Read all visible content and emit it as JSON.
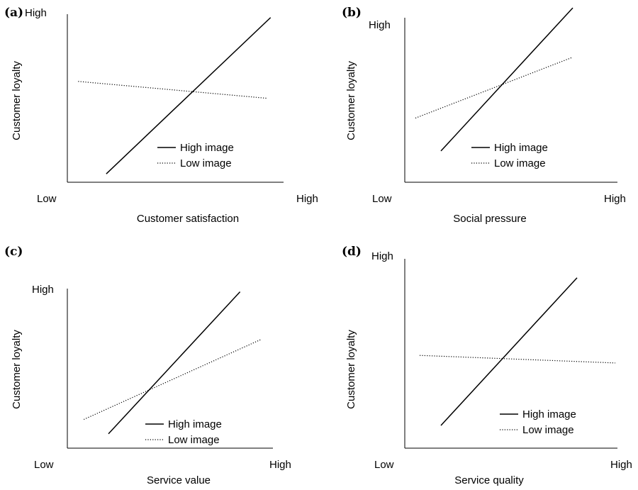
{
  "chart_data": [
    {
      "panel": "(a)",
      "type": "line",
      "xlabel": "Customer satisfaction",
      "ylabel": "Customer loyalty",
      "x_ticks": [
        "Low",
        "High"
      ],
      "y_ticks": [
        "High"
      ],
      "series": [
        {
          "name": "High image",
          "style": "solid",
          "points": [
            [
              0.18,
              0.05
            ],
            [
              0.94,
              0.98
            ]
          ]
        },
        {
          "name": "Low image",
          "style": "dotted",
          "points": [
            [
              0.05,
              0.6
            ],
            [
              0.92,
              0.5
            ]
          ]
        }
      ]
    },
    {
      "panel": "(b)",
      "type": "line",
      "xlabel": "Social pressure",
      "ylabel": "Customer loyalty",
      "x_ticks": [
        "Low",
        "High"
      ],
      "y_ticks": [
        "High"
      ],
      "series": [
        {
          "name": "High image",
          "style": "solid",
          "points": [
            [
              0.17,
              0.19
            ],
            [
              0.79,
              1.06
            ]
          ]
        },
        {
          "name": "Low image",
          "style": "dotted",
          "points": [
            [
              0.05,
              0.39
            ],
            [
              0.79,
              0.76
            ]
          ]
        }
      ]
    },
    {
      "panel": "(c)",
      "type": "line",
      "xlabel": "Service value",
      "ylabel": "Customer loyalty",
      "x_ticks": [
        "Low",
        "High"
      ],
      "y_ticks": [
        "High"
      ],
      "series": [
        {
          "name": "High image",
          "style": "solid",
          "points": [
            [
              0.2,
              0.09
            ],
            [
              0.84,
              0.98
            ]
          ]
        },
        {
          "name": "Low image",
          "style": "dotted",
          "points": [
            [
              0.08,
              0.18
            ],
            [
              0.94,
              0.68
            ]
          ]
        }
      ]
    },
    {
      "panel": "(d)",
      "type": "line",
      "xlabel": "Service quality",
      "ylabel": "Customer loyalty",
      "x_ticks": [
        "Low",
        "High"
      ],
      "y_ticks": [
        "High"
      ],
      "series": [
        {
          "name": "High image",
          "style": "solid",
          "points": [
            [
              0.17,
              0.12
            ],
            [
              0.81,
              0.9
            ]
          ]
        },
        {
          "name": "Low image",
          "style": "dotted",
          "points": [
            [
              0.07,
              0.49
            ],
            [
              0.99,
              0.45
            ]
          ]
        }
      ]
    }
  ]
}
